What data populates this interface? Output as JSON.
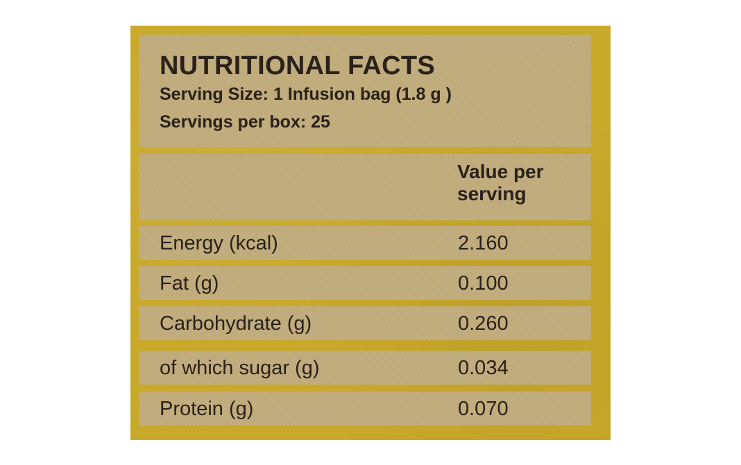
{
  "label": {
    "title": "NUTRITIONAL FACTS",
    "serving_size": "Serving Size: 1 Infusion bag (1.8 g )",
    "servings_per_box": "Servings per box: 25",
    "column_header": "Value per serving"
  },
  "rows": [
    {
      "name": "Energy (kcal)",
      "value": "2.160"
    },
    {
      "name": "Fat (g)",
      "value": "0.100"
    },
    {
      "name": "Carbohydrate (g)",
      "value": "0.260"
    },
    {
      "name": "of which sugar (g)",
      "value": "0.034"
    },
    {
      "name": "Protein (g)",
      "value": "0.070"
    }
  ],
  "colors": {
    "outer_panel": "#c9a92a",
    "inner_box": "#c2ad7c",
    "text": "#2a211a"
  }
}
